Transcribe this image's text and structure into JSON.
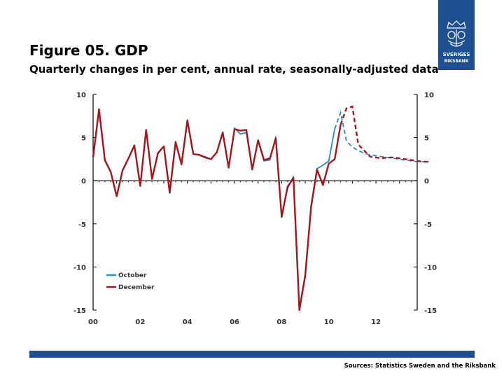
{
  "header": {
    "title": "Figure 05. GDP",
    "subtitle": "Quarterly changes in per cent, annual rate, seasonally-adjusted data"
  },
  "logo": {
    "line1": "SVERIGES",
    "line2": "RIKSBANK"
  },
  "footer": {
    "source": "Sources: Statistics Sweden and the Riksbank"
  },
  "colors": {
    "october": "#2b8cc4",
    "december": "#a5151b",
    "brand": "#1d4f91"
  },
  "chart_data": {
    "type": "line",
    "title": "Figure 05. GDP",
    "subtitle": "Quarterly changes in per cent, annual rate, seasonally-adjusted data",
    "x_range": [
      2000.0,
      2013.75
    ],
    "x_ticks": [
      {
        "value": 2000,
        "label": "00"
      },
      {
        "value": 2002,
        "label": "02"
      },
      {
        "value": 2004,
        "label": "04"
      },
      {
        "value": 2006,
        "label": "06"
      },
      {
        "value": 2008,
        "label": "08"
      },
      {
        "value": 2010,
        "label": "10"
      },
      {
        "value": 2012,
        "label": "12"
      }
    ],
    "ylim": [
      -15,
      10
    ],
    "y_ticks_left": [
      "10",
      "5",
      "0",
      "-5",
      "-10",
      "-15"
    ],
    "y_ticks_right": [
      "10",
      "5",
      "0",
      "-5",
      "-10",
      "-15"
    ],
    "y_tick_values": [
      10,
      5,
      0,
      -5,
      -10,
      -15
    ],
    "start": 2000.0,
    "step": 0.25,
    "legend": [
      "October",
      "December"
    ],
    "series": [
      {
        "name": "December",
        "outcome_end_index": 42,
        "values": [
          2.7,
          8.3,
          2.4,
          1.0,
          -1.8,
          1.2,
          2.6,
          4.1,
          -0.6,
          5.9,
          0.2,
          3.2,
          4.0,
          -1.4,
          4.5,
          1.9,
          7.0,
          3.1,
          3.0,
          2.7,
          2.5,
          3.3,
          5.6,
          1.5,
          6.0,
          5.8,
          5.9,
          1.3,
          4.7,
          2.4,
          2.6,
          4.9,
          -4.2,
          -0.7,
          0.3,
          -15.0,
          -11.0,
          -3.0,
          1.3,
          -0.5,
          2.0,
          2.5,
          6.5,
          8.4,
          8.6,
          4.2,
          3.5,
          2.8,
          2.7,
          2.6,
          2.7,
          2.7,
          2.6,
          2.5,
          2.4,
          2.3,
          2.2,
          2.2
        ]
      },
      {
        "name": "October",
        "outcome_end_index": 41,
        "values": [
          2.6,
          8.1,
          2.3,
          1.0,
          -1.7,
          1.2,
          2.6,
          4.0,
          -0.5,
          5.8,
          0.3,
          3.1,
          4.0,
          -1.3,
          4.5,
          1.9,
          6.9,
          3.1,
          3.0,
          2.8,
          2.5,
          3.3,
          5.5,
          1.5,
          6.1,
          5.4,
          5.6,
          1.4,
          4.6,
          2.3,
          2.4,
          5.1,
          -4.0,
          -0.9,
          0.5,
          -14.8,
          -10.8,
          -2.8,
          1.4,
          1.8,
          2.3,
          6.0,
          7.9,
          4.6,
          3.9,
          3.5,
          3.2,
          3.0,
          2.9,
          2.8,
          2.7,
          2.6,
          2.5,
          2.4,
          2.3,
          2.2,
          2.2,
          2.2
        ]
      }
    ]
  }
}
